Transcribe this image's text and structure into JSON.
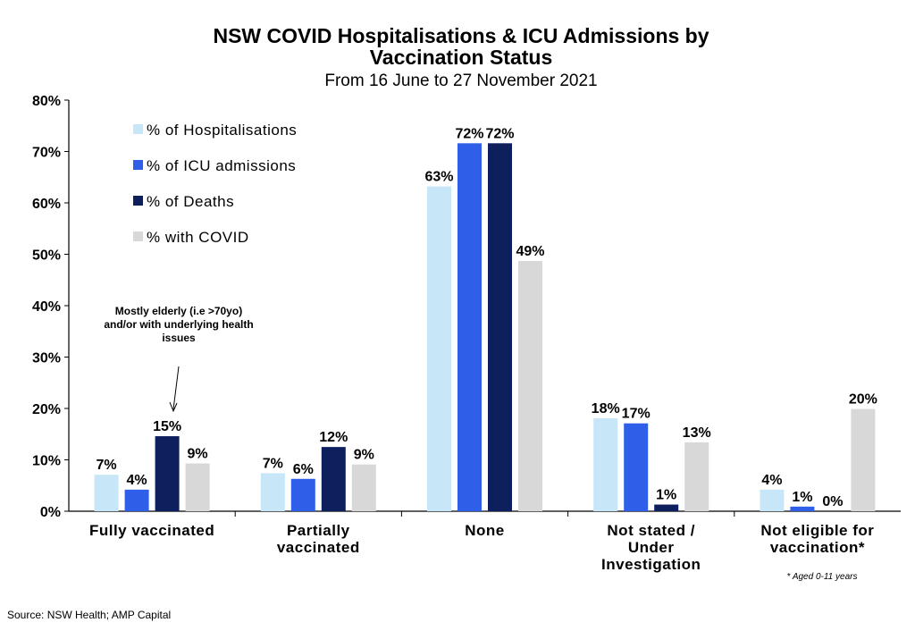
{
  "chart_data": {
    "type": "bar",
    "title_line1": "NSW COVID Hospitalisations & ICU Admissions by",
    "title_line2": "Vaccination Status",
    "subtitle": "From 16 June to 27 November 2021",
    "categories": [
      [
        "Fully vaccinated"
      ],
      [
        "Partially",
        "vaccinated"
      ],
      [
        "None"
      ],
      [
        "Not stated /",
        "Under",
        "Investigation"
      ],
      [
        "Not eligible for",
        "vaccination*"
      ]
    ],
    "series": [
      {
        "name": "% of Hospitalisations",
        "color": "#c7e6f7",
        "values": [
          7,
          7,
          63,
          18,
          4
        ]
      },
      {
        "name": "% of ICU admissions",
        "color": "#2f5ee8",
        "values": [
          4,
          6,
          72,
          17,
          1
        ]
      },
      {
        "name": "% of Deaths",
        "color": "#0d1f5c",
        "values": [
          15,
          12,
          72,
          1,
          0
        ]
      },
      {
        "name": "% with COVID",
        "color": "#d8d8d8",
        "values": [
          9,
          9,
          49,
          13,
          20
        ]
      }
    ],
    "data_labels": [
      [
        "7%",
        "4%",
        "15%",
        "9%"
      ],
      [
        "7%",
        "6%",
        "12%",
        "9%"
      ],
      [
        "63%",
        "72%",
        "72%",
        "49%"
      ],
      [
        "18%",
        "17%",
        "1%",
        "13%"
      ],
      [
        "4%",
        "1%",
        "0%",
        "20%"
      ]
    ],
    "bar_values_precise": [
      [
        7.1,
        4.2,
        14.6,
        9.3
      ],
      [
        7.4,
        6.3,
        12.5,
        9.1
      ],
      [
        63.2,
        71.6,
        71.6,
        48.7
      ],
      [
        18.1,
        17.1,
        1.3,
        13.4
      ],
      [
        4.2,
        0.9,
        0.0,
        19.9
      ]
    ],
    "yticks": [
      "0%",
      "10%",
      "20%",
      "30%",
      "40%",
      "50%",
      "60%",
      "70%",
      "80%"
    ],
    "ylim": [
      0,
      80
    ],
    "grid": false,
    "legend_position": "top-left",
    "annotation_lines": [
      "Mostly elderly (i.e >70yo)",
      "and/or with underlying health",
      "issues"
    ],
    "footnote": "* Aged 0-11 years"
  },
  "source": "Source: NSW Health; AMP Capital"
}
